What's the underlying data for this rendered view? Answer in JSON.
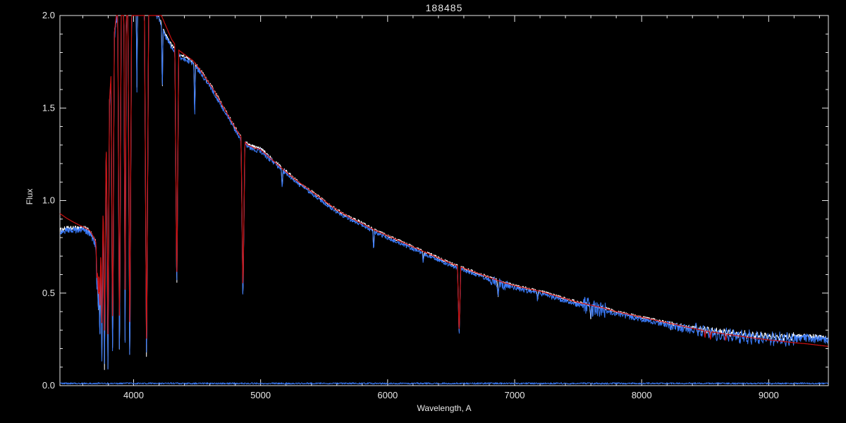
{
  "chart_data": {
    "type": "line",
    "title": "188485",
    "xlabel": "Wavelength, A",
    "ylabel": "Flux",
    "xlim": [
      3420,
      9470
    ],
    "ylim": [
      0,
      2.0
    ],
    "grid": false,
    "legend": "none",
    "x_ticks": {
      "values": [
        4000,
        5000,
        6000,
        7000,
        8000,
        9000
      ],
      "labels": [
        "4000",
        "5000",
        "6000",
        "7000",
        "8000",
        "9000"
      ],
      "minor_step": 200
    },
    "y_ticks": {
      "values": [
        0,
        0.5,
        1.0,
        1.5,
        2.0
      ],
      "labels": [
        "0.0",
        "0.5",
        "1.0",
        "1.5",
        "2.0"
      ],
      "minor_step": 0.1
    },
    "colors": {
      "background": "#000000",
      "axis": "#e8e8e8",
      "observed": "#ffffff",
      "comparison": "#3a7bfa",
      "model": "#cc1111"
    },
    "continuum": [
      [
        3420,
        0.84
      ],
      [
        3470,
        0.85
      ],
      [
        3530,
        0.85
      ],
      [
        3580,
        0.855
      ],
      [
        3620,
        0.85
      ],
      [
        3655,
        0.835
      ],
      [
        3680,
        0.8
      ],
      [
        3700,
        0.78
      ],
      [
        3715,
        0.74
      ],
      [
        3730,
        0.76
      ],
      [
        3745,
        0.84
      ],
      [
        3760,
        0.98
      ],
      [
        3780,
        1.18
      ],
      [
        3800,
        1.42
      ],
      [
        3820,
        1.64
      ],
      [
        3840,
        1.84
      ],
      [
        3860,
        1.97
      ],
      [
        3880,
        2.05
      ],
      [
        3920,
        2.09
      ],
      [
        4000,
        2.1
      ],
      [
        4080,
        2.1
      ],
      [
        4150,
        2.07
      ],
      [
        4200,
        1.99
      ],
      [
        4250,
        1.9
      ],
      [
        4300,
        1.84
      ],
      [
        4360,
        1.79
      ],
      [
        4420,
        1.77
      ],
      [
        4470,
        1.75
      ],
      [
        4520,
        1.71
      ],
      [
        4570,
        1.66
      ],
      [
        4620,
        1.61
      ],
      [
        4670,
        1.55
      ],
      [
        4720,
        1.49
      ],
      [
        4770,
        1.43
      ],
      [
        4820,
        1.37
      ],
      [
        4860,
        1.33
      ],
      [
        4900,
        1.305
      ],
      [
        4950,
        1.29
      ],
      [
        5000,
        1.28
      ],
      [
        5100,
        1.22
      ],
      [
        5200,
        1.16
      ],
      [
        5300,
        1.1
      ],
      [
        5400,
        1.05
      ],
      [
        5500,
        1.0
      ],
      [
        5600,
        0.95
      ],
      [
        5700,
        0.91
      ],
      [
        5800,
        0.88
      ],
      [
        5900,
        0.84
      ],
      [
        6000,
        0.81
      ],
      [
        6100,
        0.78
      ],
      [
        6200,
        0.75
      ],
      [
        6300,
        0.72
      ],
      [
        6400,
        0.69
      ],
      [
        6500,
        0.66
      ],
      [
        6600,
        0.635
      ],
      [
        6700,
        0.61
      ],
      [
        6800,
        0.585
      ],
      [
        6900,
        0.56
      ],
      [
        7000,
        0.54
      ],
      [
        7100,
        0.525
      ],
      [
        7200,
        0.51
      ],
      [
        7300,
        0.49
      ],
      [
        7400,
        0.47
      ],
      [
        7500,
        0.45
      ],
      [
        7600,
        0.435
      ],
      [
        7700,
        0.42
      ],
      [
        7800,
        0.4
      ],
      [
        7900,
        0.385
      ],
      [
        8000,
        0.37
      ],
      [
        8100,
        0.355
      ],
      [
        8200,
        0.34
      ],
      [
        8300,
        0.325
      ],
      [
        8400,
        0.312
      ],
      [
        8500,
        0.3
      ],
      [
        8600,
        0.29
      ],
      [
        8700,
        0.282
      ],
      [
        8800,
        0.276
      ],
      [
        8900,
        0.27
      ],
      [
        9000,
        0.265
      ],
      [
        9100,
        0.262
      ],
      [
        9200,
        0.266
      ],
      [
        9300,
        0.27
      ],
      [
        9400,
        0.262
      ],
      [
        9470,
        0.256
      ]
    ],
    "continuum_red": [
      [
        3420,
        0.93
      ],
      [
        3470,
        0.906
      ],
      [
        3520,
        0.886
      ],
      [
        3570,
        0.868
      ],
      [
        3620,
        0.852
      ],
      [
        3655,
        0.838
      ],
      [
        3680,
        0.81
      ],
      [
        3700,
        0.78
      ],
      [
        3715,
        0.75
      ],
      [
        3730,
        0.77
      ],
      [
        3745,
        0.85
      ],
      [
        3760,
        0.99
      ],
      [
        3780,
        1.19
      ],
      [
        3800,
        1.43
      ],
      [
        3820,
        1.65
      ],
      [
        3840,
        1.85
      ],
      [
        3860,
        1.98
      ],
      [
        3880,
        2.06
      ],
      [
        3920,
        2.1
      ],
      [
        4000,
        2.11
      ],
      [
        4080,
        2.11
      ],
      [
        4150,
        2.09
      ],
      [
        4200,
        2.03
      ],
      [
        4250,
        1.95
      ],
      [
        4300,
        1.87
      ],
      [
        4360,
        1.81
      ],
      [
        4420,
        1.78
      ],
      [
        4470,
        1.755
      ],
      [
        4520,
        1.71
      ],
      [
        4570,
        1.66
      ],
      [
        4620,
        1.61
      ],
      [
        4670,
        1.55
      ],
      [
        4720,
        1.49
      ],
      [
        4770,
        1.43
      ],
      [
        4820,
        1.37
      ],
      [
        4860,
        1.33
      ],
      [
        4900,
        1.3
      ],
      [
        4950,
        1.285
      ],
      [
        5000,
        1.275
      ],
      [
        5100,
        1.215
      ],
      [
        5200,
        1.155
      ],
      [
        5300,
        1.1
      ],
      [
        5400,
        1.05
      ],
      [
        5500,
        1.0
      ],
      [
        5600,
        0.95
      ],
      [
        5700,
        0.91
      ],
      [
        5800,
        0.875
      ],
      [
        5900,
        0.84
      ],
      [
        6000,
        0.81
      ],
      [
        6100,
        0.78
      ],
      [
        6200,
        0.75
      ],
      [
        6300,
        0.72
      ],
      [
        6400,
        0.69
      ],
      [
        6500,
        0.66
      ],
      [
        6600,
        0.635
      ],
      [
        6700,
        0.61
      ],
      [
        6800,
        0.585
      ],
      [
        6900,
        0.56
      ],
      [
        7000,
        0.54
      ],
      [
        7100,
        0.525
      ],
      [
        7200,
        0.51
      ],
      [
        7300,
        0.49
      ],
      [
        7400,
        0.47
      ],
      [
        7500,
        0.45
      ],
      [
        7600,
        0.435
      ],
      [
        7700,
        0.42
      ],
      [
        7800,
        0.4
      ],
      [
        7900,
        0.385
      ],
      [
        8000,
        0.37
      ],
      [
        8100,
        0.355
      ],
      [
        8200,
        0.34
      ],
      [
        8300,
        0.325
      ],
      [
        8400,
        0.31
      ],
      [
        8500,
        0.296
      ],
      [
        8600,
        0.285
      ],
      [
        8700,
        0.275
      ],
      [
        8800,
        0.265
      ],
      [
        8900,
        0.256
      ],
      [
        9000,
        0.247
      ],
      [
        9100,
        0.24
      ],
      [
        9200,
        0.232
      ],
      [
        9300,
        0.226
      ],
      [
        9400,
        0.218
      ],
      [
        9470,
        0.212
      ]
    ],
    "baseline": [
      [
        3420,
        0.012
      ],
      [
        9470,
        0.012
      ]
    ],
    "lines_obs": [
      {
        "x": 3712,
        "y": 0.5,
        "w": 8
      },
      {
        "x": 3722,
        "y": 0.35,
        "w": 8
      },
      {
        "x": 3734,
        "y": 0.22,
        "w": 9
      },
      {
        "x": 3750,
        "y": 0.15,
        "w": 10
      },
      {
        "x": 3771,
        "y": 0.1,
        "w": 11
      },
      {
        "x": 3798,
        "y": 0.08,
        "w": 12
      },
      {
        "x": 3835,
        "y": 0.06,
        "w": 13
      },
      {
        "x": 3889,
        "y": 0.05,
        "w": 14
      },
      {
        "x": 3933,
        "y": 0.24,
        "w": 10
      },
      {
        "x": 3970,
        "y": 0.04,
        "w": 15
      },
      {
        "x": 4026,
        "y": 1.6,
        "w": 6
      },
      {
        "x": 4102,
        "y": 0.04,
        "w": 17
      },
      {
        "x": 4226,
        "y": 1.55,
        "w": 6
      },
      {
        "x": 4340,
        "y": 0.47,
        "w": 15
      },
      {
        "x": 4481,
        "y": 1.44,
        "w": 7
      },
      {
        "x": 4861,
        "y": 0.44,
        "w": 15
      },
      {
        "x": 5170,
        "y": 1.07,
        "w": 8
      },
      {
        "x": 5890,
        "y": 0.73,
        "w": 7
      },
      {
        "x": 6280,
        "y": 0.66,
        "w": 6
      },
      {
        "x": 6563,
        "y": 0.26,
        "w": 13
      },
      {
        "x": 6870,
        "y": 0.48,
        "w": 9
      },
      {
        "x": 7180,
        "y": 0.46,
        "w": 8
      },
      {
        "x": 7600,
        "y": 0.355,
        "w": 11
      },
      {
        "x": 8230,
        "y": 0.295,
        "w": 7
      }
    ],
    "lines_model": [
      {
        "x": 3712,
        "y": 0.56,
        "w": 8
      },
      {
        "x": 3722,
        "y": 0.46,
        "w": 8
      },
      {
        "x": 3734,
        "y": 0.39,
        "w": 9
      },
      {
        "x": 3750,
        "y": 0.34,
        "w": 10
      },
      {
        "x": 3771,
        "y": 0.3,
        "w": 11
      },
      {
        "x": 3798,
        "y": 0.28,
        "w": 12
      },
      {
        "x": 3835,
        "y": 0.26,
        "w": 13
      },
      {
        "x": 3889,
        "y": 0.25,
        "w": 14
      },
      {
        "x": 3933,
        "y": 0.52,
        "w": 10
      },
      {
        "x": 3970,
        "y": 0.22,
        "w": 15
      },
      {
        "x": 4102,
        "y": 0.14,
        "w": 17
      },
      {
        "x": 4340,
        "y": 0.53,
        "w": 15
      },
      {
        "x": 4861,
        "y": 0.5,
        "w": 15
      },
      {
        "x": 6563,
        "y": 0.28,
        "w": 13
      },
      {
        "x": 8498,
        "y": 0.255,
        "w": 7
      },
      {
        "x": 8542,
        "y": 0.245,
        "w": 8
      },
      {
        "x": 8662,
        "y": 0.24,
        "w": 8
      }
    ],
    "series": [
      {
        "name": "observed-white",
        "color_key": "observed",
        "width": 1,
        "base": "continuum",
        "lines": "lines_obs",
        "noise": [
          [
            3420,
            3690,
            0.012
          ],
          [
            3690,
            4200,
            0.016
          ],
          [
            4200,
            5200,
            0.01
          ],
          [
            5200,
            7000,
            0.008
          ],
          [
            7000,
            8200,
            0.008
          ],
          [
            8200,
            9470,
            0.012
          ]
        ],
        "ripple": {
          "from": 8420,
          "to": 9200,
          "amp": 0.012,
          "period": 32
        }
      },
      {
        "name": "observed-blue",
        "color_key": "comparison",
        "width": 1,
        "base": "continuum",
        "lines": "lines_obs",
        "offset": -0.012,
        "noise": [
          [
            3420,
            3690,
            0.016
          ],
          [
            3690,
            4200,
            0.026
          ],
          [
            4200,
            5200,
            0.014
          ],
          [
            5200,
            6800,
            0.01
          ],
          [
            6800,
            6960,
            0.028
          ],
          [
            6960,
            7540,
            0.013
          ],
          [
            7540,
            7720,
            0.05
          ],
          [
            7720,
            8200,
            0.014
          ],
          [
            8200,
            9470,
            0.022
          ]
        ],
        "ripple": {
          "from": 8420,
          "to": 9200,
          "amp": 0.02,
          "period": 30
        }
      },
      {
        "name": "model-red",
        "color_key": "model",
        "width": 1.2,
        "base": "continuum_red",
        "lines": "lines_model",
        "noise": []
      },
      {
        "name": "baseline-blue",
        "color_key": "comparison",
        "width": 1,
        "base": "baseline",
        "lines": [],
        "noise": [
          [
            3420,
            9470,
            0.004
          ]
        ]
      }
    ]
  }
}
